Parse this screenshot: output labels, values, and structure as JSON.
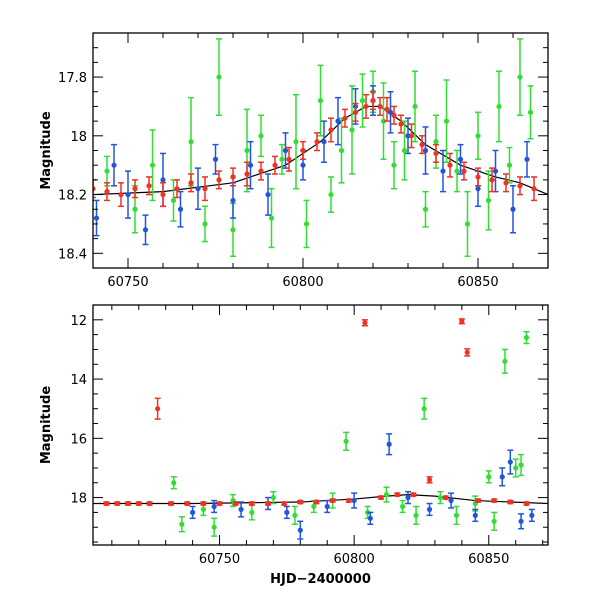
{
  "chart_data": [
    {
      "type": "scatter",
      "panel": "top",
      "title": "",
      "xlabel": "",
      "ylabel": "Magnitude",
      "xlim": [
        60740,
        60870
      ],
      "ylim": [
        18.45,
        17.65
      ],
      "y_inverted": true,
      "xticks": [
        60750,
        60800,
        60850
      ],
      "yticks": [
        17.8,
        18,
        18.2,
        18.4
      ],
      "xtick_labels": [
        "60750",
        "60800",
        "60850"
      ],
      "ytick_labels": [
        "17.8",
        "18",
        "18.2",
        "18.4"
      ],
      "grid": false,
      "legend": "none",
      "model_line": {
        "color": "#000000",
        "x": [
          60740,
          60760,
          60780,
          60795,
          60805,
          60812,
          60818,
          60822,
          60828,
          60835,
          60845,
          60855,
          60862,
          60870
        ],
        "y": [
          18.2,
          18.19,
          18.16,
          18.1,
          18.02,
          17.94,
          17.9,
          17.9,
          17.95,
          18.03,
          18.1,
          18.14,
          18.16,
          18.2
        ]
      },
      "series": [
        {
          "color": "#33dd33",
          "x": [
            60744,
            60752,
            60757,
            60763,
            60768,
            60772,
            60776,
            60780,
            60784,
            60788,
            60791,
            60794,
            60798,
            60801,
            60805,
            60808,
            60811,
            60814,
            60817,
            60820,
            60823,
            60826,
            60829,
            60832,
            60835,
            60838,
            60841,
            60844,
            60847,
            60850,
            60853,
            60856,
            60859,
            60862,
            60865
          ],
          "y": [
            18.12,
            18.25,
            18.1,
            18.22,
            18.02,
            18.3,
            17.8,
            18.32,
            18.05,
            18.0,
            18.28,
            18.08,
            18.02,
            18.3,
            17.88,
            18.2,
            18.05,
            17.98,
            17.88,
            17.85,
            17.95,
            18.1,
            18.05,
            17.9,
            18.25,
            18.02,
            17.95,
            18.12,
            18.3,
            18.0,
            18.22,
            17.9,
            18.1,
            17.8,
            17.92
          ],
          "yerr": [
            0.05,
            0.08,
            0.12,
            0.07,
            0.15,
            0.06,
            0.13,
            0.09,
            0.14,
            0.07,
            0.1,
            0.05,
            0.16,
            0.08,
            0.12,
            0.06,
            0.11,
            0.15,
            0.09,
            0.07,
            0.13,
            0.08,
            0.1,
            0.12,
            0.06,
            0.09,
            0.14,
            0.07,
            0.11,
            0.08,
            0.1,
            0.12,
            0.06,
            0.13,
            0.09
          ]
        },
        {
          "color": "#2255dd",
          "x": [
            60741,
            60746,
            60750,
            60755,
            60760,
            60765,
            60770,
            60775,
            60780,
            60785,
            60790,
            60795,
            60800,
            60806,
            60810,
            60815,
            60820,
            60825,
            60830,
            60835,
            60840,
            60845,
            60850,
            60855,
            60860,
            60864
          ],
          "y": [
            18.28,
            18.1,
            18.2,
            18.32,
            18.15,
            18.25,
            18.18,
            18.08,
            18.22,
            18.1,
            18.2,
            18.05,
            18.1,
            18.02,
            17.95,
            17.9,
            17.88,
            17.92,
            18.0,
            18.05,
            18.12,
            18.08,
            18.18,
            18.12,
            18.25,
            18.08
          ],
          "yerr": [
            0.06,
            0.07,
            0.08,
            0.05,
            0.09,
            0.06,
            0.07,
            0.05,
            0.06,
            0.08,
            0.07,
            0.06,
            0.05,
            0.07,
            0.08,
            0.06,
            0.05,
            0.07,
            0.06,
            0.08,
            0.07,
            0.05,
            0.06,
            0.07,
            0.08,
            0.06
          ]
        },
        {
          "color": "#ee3322",
          "x": [
            60740,
            60744,
            60748,
            60752,
            60756,
            60760,
            60764,
            60768,
            60772,
            60776,
            60780,
            60784,
            60788,
            60792,
            60796,
            60800,
            60804,
            60808,
            60812,
            60815,
            60818,
            60820,
            60822,
            60824,
            60826,
            60828,
            60831,
            60834,
            60838,
            60842,
            60846,
            60850,
            60854,
            60858,
            60862,
            60866
          ],
          "y": [
            18.18,
            18.19,
            18.2,
            18.18,
            18.17,
            18.2,
            18.18,
            18.16,
            18.18,
            18.15,
            18.14,
            18.13,
            18.12,
            18.1,
            18.08,
            18.05,
            18.02,
            17.98,
            17.94,
            17.92,
            17.9,
            17.88,
            17.9,
            17.91,
            17.93,
            17.96,
            18.0,
            18.03,
            18.06,
            18.1,
            18.12,
            18.14,
            18.15,
            18.16,
            18.17,
            18.18
          ],
          "yerr": [
            0.03,
            0.03,
            0.04,
            0.03,
            0.03,
            0.04,
            0.03,
            0.03,
            0.04,
            0.03,
            0.03,
            0.04,
            0.03,
            0.03,
            0.04,
            0.03,
            0.03,
            0.04,
            0.03,
            0.03,
            0.04,
            0.03,
            0.03,
            0.04,
            0.03,
            0.03,
            0.04,
            0.03,
            0.03,
            0.04,
            0.03,
            0.03,
            0.04,
            0.03,
            0.03,
            0.04
          ]
        }
      ]
    },
    {
      "type": "scatter",
      "panel": "bottom",
      "title": "",
      "xlabel": "HJD−2400000",
      "ylabel": "Magnitude",
      "xlim": [
        60703,
        60872
      ],
      "ylim": [
        19.6,
        11.5
      ],
      "y_inverted": true,
      "xticks": [
        60750,
        60800,
        60850
      ],
      "yticks": [
        12,
        14,
        16,
        18
      ],
      "xtick_labels": [
        "60750",
        "60800",
        "60850"
      ],
      "ytick_labels": [
        "12",
        "14",
        "16",
        "18"
      ],
      "grid": false,
      "legend": "none",
      "model_line": {
        "color": "#000000",
        "x": [
          60703,
          60740,
          60780,
          60800,
          60812,
          60820,
          60830,
          60845,
          60872
        ],
        "y": [
          18.2,
          18.2,
          18.15,
          18.05,
          17.95,
          17.9,
          17.95,
          18.1,
          18.2
        ]
      },
      "series": [
        {
          "color": "#33dd33",
          "x": [
            60733,
            60736,
            60744,
            60748,
            60755,
            60762,
            60770,
            60778,
            60785,
            60792,
            60797,
            60805,
            60812,
            60818,
            60823,
            60826,
            60832,
            60838,
            60845,
            60850,
            60852,
            60856,
            60860,
            60862,
            60864
          ],
          "y": [
            17.5,
            18.9,
            18.4,
            19.0,
            18.1,
            18.5,
            18.0,
            18.6,
            18.3,
            18.1,
            16.1,
            18.5,
            17.9,
            18.3,
            18.6,
            15.0,
            18.0,
            18.6,
            18.2,
            17.3,
            18.8,
            13.4,
            17.0,
            16.9,
            12.6
          ],
          "yerr": [
            0.2,
            0.25,
            0.2,
            0.3,
            0.2,
            0.25,
            0.2,
            0.3,
            0.2,
            0.25,
            0.3,
            0.2,
            0.25,
            0.2,
            0.3,
            0.35,
            0.2,
            0.3,
            0.25,
            0.2,
            0.3,
            0.4,
            0.3,
            0.35,
            0.2
          ]
        },
        {
          "color": "#2255dd",
          "x": [
            60740,
            60748,
            60758,
            60768,
            60775,
            60780,
            60790,
            60800,
            60806,
            60813,
            60820,
            60828,
            60836,
            60845,
            60855,
            60858,
            60862,
            60866
          ],
          "y": [
            18.5,
            18.3,
            18.4,
            18.2,
            18.5,
            19.1,
            18.3,
            18.1,
            18.7,
            16.2,
            18.0,
            18.4,
            18.1,
            18.6,
            17.3,
            16.8,
            18.8,
            18.6
          ],
          "yerr": [
            0.2,
            0.2,
            0.25,
            0.2,
            0.2,
            0.3,
            0.2,
            0.25,
            0.2,
            0.35,
            0.2,
            0.2,
            0.25,
            0.2,
            0.3,
            0.4,
            0.25,
            0.2
          ]
        },
        {
          "color": "#ee3322",
          "x": [
            60708,
            60712,
            60716,
            60720,
            60724,
            60727,
            60732,
            60738,
            60744,
            60750,
            60756,
            60762,
            60768,
            60774,
            60780,
            60786,
            60792,
            60798,
            60804,
            60810,
            60816,
            60822,
            60828,
            60834,
            60840,
            60842,
            60846,
            60852,
            60858,
            60864
          ],
          "y": [
            18.2,
            18.2,
            18.2,
            18.2,
            18.2,
            15.0,
            18.2,
            18.2,
            18.2,
            18.2,
            18.2,
            18.2,
            18.2,
            18.2,
            18.15,
            18.15,
            18.1,
            18.1,
            12.1,
            18.0,
            17.9,
            17.9,
            17.4,
            18.0,
            12.05,
            13.1,
            18.1,
            18.1,
            18.15,
            18.2
          ],
          "yerr": [
            0.05,
            0.05,
            0.05,
            0.05,
            0.05,
            0.35,
            0.05,
            0.05,
            0.05,
            0.05,
            0.05,
            0.05,
            0.05,
            0.05,
            0.05,
            0.05,
            0.05,
            0.05,
            0.1,
            0.05,
            0.05,
            0.05,
            0.1,
            0.05,
            0.08,
            0.12,
            0.05,
            0.05,
            0.05,
            0.05
          ]
        }
      ]
    }
  ]
}
